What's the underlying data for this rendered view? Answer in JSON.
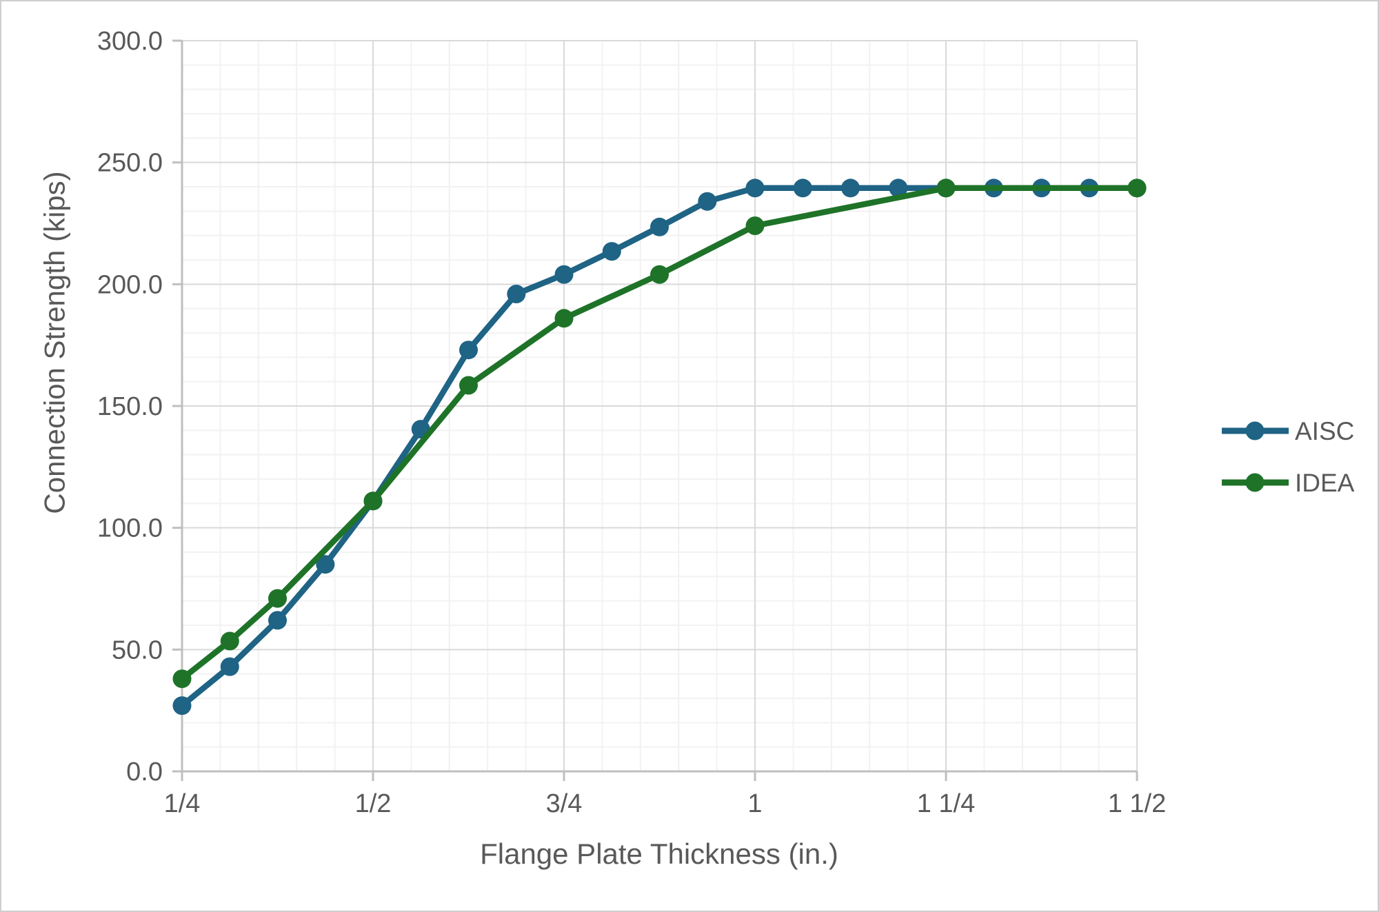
{
  "chart_data": {
    "type": "line",
    "title": "",
    "xlabel": "Flange Plate Thickness (in.)",
    "ylabel": "Connection Strength (kips)",
    "x_axis": {
      "min": 0.25,
      "max": 1.5,
      "major_unit": 0.25,
      "minor_unit": 0.05,
      "major_tick_values": [
        0.25,
        0.5,
        0.75,
        1.0,
        1.25,
        1.5
      ],
      "major_tick_labels": [
        "1/4",
        "1/2",
        "3/4",
        "1",
        "1 1/4",
        "1 1/2"
      ]
    },
    "y_axis": {
      "min": 0,
      "max": 300,
      "major_unit": 50,
      "minor_unit": 10,
      "major_tick_values": [
        0,
        50,
        100,
        150,
        200,
        250,
        300
      ],
      "major_tick_labels": [
        "0.0",
        "50.0",
        "100.0",
        "150.0",
        "200.0",
        "250.0",
        "300.0"
      ]
    },
    "grid": {
      "major": true,
      "minor": true
    },
    "legend": {
      "position": "right",
      "entries": [
        "AISC",
        "IDEA"
      ]
    },
    "series": [
      {
        "name": "AISC",
        "color": "#1f6385",
        "points": [
          [
            0.25,
            27
          ],
          [
            0.3125,
            43
          ],
          [
            0.375,
            62
          ],
          [
            0.4375,
            85
          ],
          [
            0.5,
            111
          ],
          [
            0.5625,
            140.5
          ],
          [
            0.625,
            173
          ],
          [
            0.6875,
            196
          ],
          [
            0.75,
            204
          ],
          [
            0.8125,
            213.5
          ],
          [
            0.875,
            223.5
          ],
          [
            0.9375,
            234
          ],
          [
            1.0,
            239.5
          ],
          [
            1.0625,
            239.5
          ],
          [
            1.125,
            239.5
          ],
          [
            1.1875,
            239.5
          ],
          [
            1.25,
            239.5
          ],
          [
            1.3125,
            239.5
          ],
          [
            1.375,
            239.5
          ],
          [
            1.4375,
            239.5
          ],
          [
            1.5,
            239.5
          ]
        ]
      },
      {
        "name": "IDEA",
        "color": "#1e7328",
        "points": [
          [
            0.25,
            38
          ],
          [
            0.3125,
            53.5
          ],
          [
            0.375,
            71
          ],
          [
            0.5,
            111
          ],
          [
            0.625,
            158.5
          ],
          [
            0.75,
            186
          ],
          [
            0.875,
            204
          ],
          [
            1.0,
            224
          ],
          [
            1.25,
            239.5
          ],
          [
            1.5,
            239.5
          ]
        ]
      }
    ],
    "colors": {
      "text": "#595959",
      "major_gridline": "#d9d9d9",
      "minor_gridline": "#f2f2f2",
      "axis_line": "#bfbfbf",
      "background": "#ffffff"
    }
  }
}
